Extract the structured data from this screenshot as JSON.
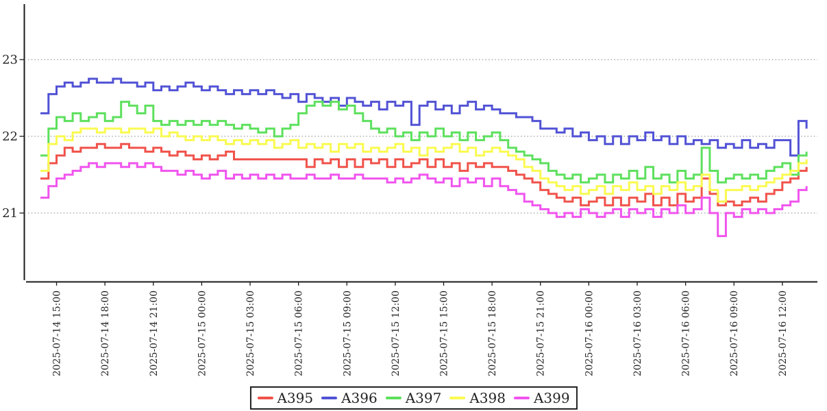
{
  "chart_data": {
    "type": "line",
    "step": "post",
    "title": "",
    "xlabel": "",
    "ylabel": "",
    "grid": {
      "horizontal": true,
      "style": "dotted"
    },
    "legend_position": "bottom-center",
    "axis_color": "#1a1a1a",
    "grid_color": "#808080",
    "text_color": "#262626",
    "ylim": [
      20.15,
      23.7
    ],
    "y_ticks": [
      21,
      22,
      23
    ],
    "y_tick_labels": [
      "21",
      "22",
      "23"
    ],
    "x_tick_labels": [
      "2025-07-14 15:00",
      "2025-07-14 18:00",
      "2025-07-14 21:00",
      "2025-07-15 00:00",
      "2025-07-15 03:00",
      "2025-07-15 06:00",
      "2025-07-15 09:00",
      "2025-07-15 12:00",
      "2025-07-15 15:00",
      "2025-07-15 18:00",
      "2025-07-15 21:00",
      "2025-07-16 00:00",
      "2025-07-16 03:00",
      "2025-07-16 06:00",
      "2025-07-16 09:00",
      "2025-07-16 12:00"
    ],
    "x_tick_interval_hours": 3,
    "points_per_tick_interval": 6,
    "series": [
      {
        "name": "A395",
        "color": "#f0524a",
        "values": [
          21.45,
          21.65,
          21.75,
          21.85,
          21.8,
          21.85,
          21.85,
          21.9,
          21.85,
          21.85,
          21.9,
          21.85,
          21.85,
          21.8,
          21.85,
          21.8,
          21.75,
          21.8,
          21.75,
          21.7,
          21.75,
          21.7,
          21.75,
          21.8,
          21.7,
          21.7,
          21.7,
          21.7,
          21.7,
          21.7,
          21.7,
          21.7,
          21.7,
          21.6,
          21.7,
          21.65,
          21.7,
          21.6,
          21.7,
          21.6,
          21.7,
          21.65,
          21.7,
          21.6,
          21.7,
          21.6,
          21.65,
          21.7,
          21.6,
          21.7,
          21.6,
          21.65,
          21.55,
          21.65,
          21.6,
          21.65,
          21.6,
          21.6,
          21.55,
          21.5,
          21.45,
          21.4,
          21.3,
          21.25,
          21.2,
          21.15,
          21.2,
          21.1,
          21.15,
          21.2,
          21.1,
          21.2,
          21.1,
          21.2,
          21.15,
          21.25,
          21.1,
          21.2,
          21.1,
          21.25,
          21.15,
          21.2,
          21.45,
          21.25,
          21.1,
          21.15,
          21.1,
          21.15,
          21.2,
          21.15,
          21.25,
          21.3,
          21.4,
          21.45,
          21.55,
          21.6
        ]
      },
      {
        "name": "A396",
        "color": "#5152d5",
        "values": [
          22.3,
          22.55,
          22.65,
          22.7,
          22.65,
          22.7,
          22.75,
          22.7,
          22.7,
          22.75,
          22.7,
          22.7,
          22.65,
          22.7,
          22.6,
          22.65,
          22.6,
          22.65,
          22.7,
          22.65,
          22.6,
          22.65,
          22.6,
          22.55,
          22.6,
          22.55,
          22.6,
          22.55,
          22.6,
          22.55,
          22.5,
          22.55,
          22.45,
          22.55,
          22.5,
          22.45,
          22.5,
          22.4,
          22.5,
          22.45,
          22.4,
          22.45,
          22.35,
          22.45,
          22.4,
          22.45,
          22.15,
          22.4,
          22.45,
          22.35,
          22.4,
          22.3,
          22.4,
          22.45,
          22.35,
          22.4,
          22.35,
          22.3,
          22.3,
          22.25,
          22.25,
          22.2,
          22.1,
          22.1,
          22.05,
          22.1,
          22.0,
          22.05,
          21.95,
          22.0,
          21.9,
          22.0,
          21.9,
          22.0,
          21.95,
          22.05,
          21.95,
          22.0,
          21.9,
          22.0,
          21.9,
          21.95,
          21.9,
          21.95,
          21.85,
          21.9,
          21.85,
          21.95,
          21.85,
          21.9,
          21.85,
          21.95,
          21.95,
          21.75,
          22.2,
          22.1
        ]
      },
      {
        "name": "A397",
        "color": "#5de05d",
        "values": [
          21.75,
          22.1,
          22.25,
          22.2,
          22.3,
          22.2,
          22.25,
          22.3,
          22.2,
          22.25,
          22.45,
          22.4,
          22.3,
          22.4,
          22.2,
          22.15,
          22.2,
          22.15,
          22.2,
          22.15,
          22.2,
          22.15,
          22.2,
          22.15,
          22.1,
          22.15,
          22.1,
          22.05,
          22.1,
          22.0,
          22.1,
          22.15,
          22.3,
          22.4,
          22.45,
          22.4,
          22.45,
          22.35,
          22.4,
          22.3,
          22.2,
          22.1,
          22.05,
          22.1,
          22.0,
          22.05,
          21.95,
          22.05,
          22.0,
          22.1,
          22.0,
          22.05,
          21.95,
          22.05,
          21.95,
          22.0,
          22.05,
          21.95,
          21.85,
          21.8,
          21.75,
          21.7,
          21.65,
          21.55,
          21.5,
          21.45,
          21.5,
          21.4,
          21.45,
          21.5,
          21.4,
          21.5,
          21.45,
          21.55,
          21.45,
          21.6,
          21.45,
          21.5,
          21.4,
          21.55,
          21.45,
          21.5,
          21.85,
          21.55,
          21.4,
          21.45,
          21.5,
          21.45,
          21.5,
          21.45,
          21.55,
          21.6,
          21.65,
          21.5,
          21.75,
          21.8
        ]
      },
      {
        "name": "A398",
        "color": "#fafa50",
        "values": [
          21.55,
          21.9,
          22.0,
          21.95,
          22.05,
          22.1,
          22.1,
          22.05,
          22.1,
          22.1,
          22.05,
          22.1,
          22.1,
          22.05,
          22.1,
          22.0,
          22.05,
          22.0,
          21.95,
          22.0,
          21.95,
          22.0,
          21.95,
          21.9,
          21.95,
          21.9,
          21.95,
          21.9,
          21.95,
          21.85,
          21.9,
          21.95,
          21.85,
          21.9,
          21.85,
          21.9,
          21.8,
          21.9,
          21.85,
          21.9,
          21.8,
          21.85,
          21.8,
          21.85,
          21.9,
          21.8,
          21.85,
          21.75,
          21.85,
          21.8,
          21.85,
          21.9,
          21.8,
          21.85,
          21.75,
          21.8,
          21.85,
          21.8,
          21.75,
          21.7,
          21.6,
          21.55,
          21.45,
          21.4,
          21.35,
          21.3,
          21.35,
          21.25,
          21.3,
          21.35,
          21.25,
          21.35,
          21.3,
          21.4,
          21.3,
          21.35,
          21.25,
          21.35,
          21.3,
          21.4,
          21.3,
          21.35,
          21.5,
          21.3,
          21.15,
          21.3,
          21.3,
          21.35,
          21.3,
          21.35,
          21.4,
          21.45,
          21.5,
          21.55,
          21.65,
          21.7
        ]
      },
      {
        "name": "A399",
        "color": "#f054ee",
        "values": [
          21.2,
          21.35,
          21.45,
          21.5,
          21.55,
          21.6,
          21.65,
          21.6,
          21.65,
          21.65,
          21.6,
          21.65,
          21.6,
          21.65,
          21.6,
          21.55,
          21.55,
          21.5,
          21.55,
          21.5,
          21.45,
          21.5,
          21.55,
          21.45,
          21.5,
          21.45,
          21.5,
          21.45,
          21.5,
          21.45,
          21.5,
          21.45,
          21.45,
          21.5,
          21.45,
          21.45,
          21.5,
          21.45,
          21.45,
          21.5,
          21.45,
          21.45,
          21.45,
          21.4,
          21.45,
          21.4,
          21.45,
          21.5,
          21.45,
          21.4,
          21.45,
          21.35,
          21.45,
          21.4,
          21.45,
          21.35,
          21.45,
          21.35,
          21.3,
          21.25,
          21.15,
          21.1,
          21.05,
          21.0,
          20.95,
          21.0,
          20.95,
          21.05,
          21.0,
          20.95,
          21.0,
          21.05,
          20.95,
          21.05,
          21.0,
          21.05,
          20.95,
          21.05,
          21.0,
          21.1,
          21.0,
          21.05,
          21.2,
          21.0,
          20.7,
          21.0,
          20.95,
          21.05,
          21.0,
          21.05,
          21.0,
          21.05,
          21.1,
          21.15,
          21.3,
          21.35
        ]
      }
    ]
  }
}
